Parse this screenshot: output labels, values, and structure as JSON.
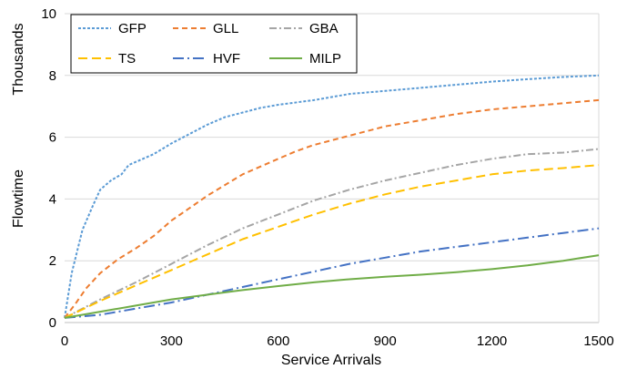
{
  "chart_data": {
    "type": "line",
    "title": "",
    "xlabel": "Service Arrivals",
    "ylabel": "Flowtime",
    "yunit_label": "Thousands",
    "xlim": [
      0,
      1500
    ],
    "ylim": [
      0,
      10
    ],
    "xticks": [
      0,
      300,
      600,
      900,
      1200,
      1500
    ],
    "yticks": [
      0,
      2,
      4,
      6,
      8,
      10
    ],
    "grid": "horizontal",
    "legend_position": "top-left",
    "legend_columns": 3,
    "series": [
      {
        "name": "GFP",
        "color": "#5B9BD5",
        "dash": "short-dash",
        "points": [
          [
            0,
            0.15
          ],
          [
            20,
            1.6
          ],
          [
            50,
            3.0
          ],
          [
            80,
            3.8
          ],
          [
            100,
            4.3
          ],
          [
            130,
            4.6
          ],
          [
            160,
            4.8
          ],
          [
            180,
            5.1
          ],
          [
            200,
            5.2
          ],
          [
            250,
            5.45
          ],
          [
            300,
            5.8
          ],
          [
            350,
            6.1
          ],
          [
            400,
            6.4
          ],
          [
            450,
            6.65
          ],
          [
            500,
            6.8
          ],
          [
            550,
            6.95
          ],
          [
            600,
            7.05
          ],
          [
            700,
            7.2
          ],
          [
            800,
            7.4
          ],
          [
            900,
            7.5
          ],
          [
            1000,
            7.6
          ],
          [
            1100,
            7.7
          ],
          [
            1200,
            7.8
          ],
          [
            1300,
            7.88
          ],
          [
            1400,
            7.95
          ],
          [
            1500,
            8.0
          ]
        ]
      },
      {
        "name": "GLL",
        "color": "#ED7D31",
        "dash": "dash",
        "points": [
          [
            0,
            0.15
          ],
          [
            30,
            0.6
          ],
          [
            60,
            1.1
          ],
          [
            100,
            1.6
          ],
          [
            150,
            2.05
          ],
          [
            200,
            2.4
          ],
          [
            250,
            2.8
          ],
          [
            300,
            3.3
          ],
          [
            350,
            3.7
          ],
          [
            400,
            4.1
          ],
          [
            450,
            4.45
          ],
          [
            500,
            4.8
          ],
          [
            550,
            5.05
          ],
          [
            600,
            5.3
          ],
          [
            650,
            5.55
          ],
          [
            700,
            5.75
          ],
          [
            800,
            6.05
          ],
          [
            900,
            6.35
          ],
          [
            1000,
            6.55
          ],
          [
            1100,
            6.75
          ],
          [
            1200,
            6.9
          ],
          [
            1300,
            7.0
          ],
          [
            1400,
            7.1
          ],
          [
            1500,
            7.2
          ]
        ]
      },
      {
        "name": "GBA",
        "color": "#A5A5A5",
        "dash": "dash-dot",
        "points": [
          [
            0,
            0.15
          ],
          [
            100,
            0.75
          ],
          [
            200,
            1.3
          ],
          [
            300,
            1.9
          ],
          [
            400,
            2.5
          ],
          [
            500,
            3.05
          ],
          [
            600,
            3.5
          ],
          [
            700,
            3.95
          ],
          [
            800,
            4.3
          ],
          [
            900,
            4.6
          ],
          [
            1000,
            4.85
          ],
          [
            1100,
            5.1
          ],
          [
            1200,
            5.3
          ],
          [
            1300,
            5.45
          ],
          [
            1400,
            5.5
          ],
          [
            1500,
            5.62
          ]
        ]
      },
      {
        "name": "TS",
        "color": "#FFC000",
        "dash": "long-dash",
        "points": [
          [
            0,
            0.15
          ],
          [
            100,
            0.7
          ],
          [
            200,
            1.2
          ],
          [
            300,
            1.7
          ],
          [
            400,
            2.2
          ],
          [
            500,
            2.7
          ],
          [
            600,
            3.1
          ],
          [
            700,
            3.5
          ],
          [
            800,
            3.85
          ],
          [
            900,
            4.15
          ],
          [
            1000,
            4.4
          ],
          [
            1100,
            4.6
          ],
          [
            1200,
            4.8
          ],
          [
            1300,
            4.92
          ],
          [
            1400,
            5.0
          ],
          [
            1500,
            5.1
          ]
        ]
      },
      {
        "name": "HVF",
        "color": "#4472C4",
        "dash": "long-dash-dot",
        "points": [
          [
            0,
            0.15
          ],
          [
            100,
            0.25
          ],
          [
            200,
            0.45
          ],
          [
            300,
            0.65
          ],
          [
            400,
            0.9
          ],
          [
            500,
            1.15
          ],
          [
            600,
            1.4
          ],
          [
            700,
            1.65
          ],
          [
            800,
            1.9
          ],
          [
            900,
            2.1
          ],
          [
            1000,
            2.3
          ],
          [
            1100,
            2.45
          ],
          [
            1200,
            2.6
          ],
          [
            1300,
            2.75
          ],
          [
            1400,
            2.9
          ],
          [
            1500,
            3.05
          ]
        ]
      },
      {
        "name": "MILP",
        "color": "#70AD47",
        "dash": "solid",
        "points": [
          [
            0,
            0.15
          ],
          [
            100,
            0.35
          ],
          [
            200,
            0.55
          ],
          [
            300,
            0.75
          ],
          [
            400,
            0.9
          ],
          [
            500,
            1.05
          ],
          [
            600,
            1.18
          ],
          [
            700,
            1.3
          ],
          [
            800,
            1.4
          ],
          [
            900,
            1.48
          ],
          [
            1000,
            1.55
          ],
          [
            1100,
            1.63
          ],
          [
            1200,
            1.73
          ],
          [
            1300,
            1.85
          ],
          [
            1400,
            2.0
          ],
          [
            1500,
            2.18
          ]
        ]
      }
    ]
  }
}
